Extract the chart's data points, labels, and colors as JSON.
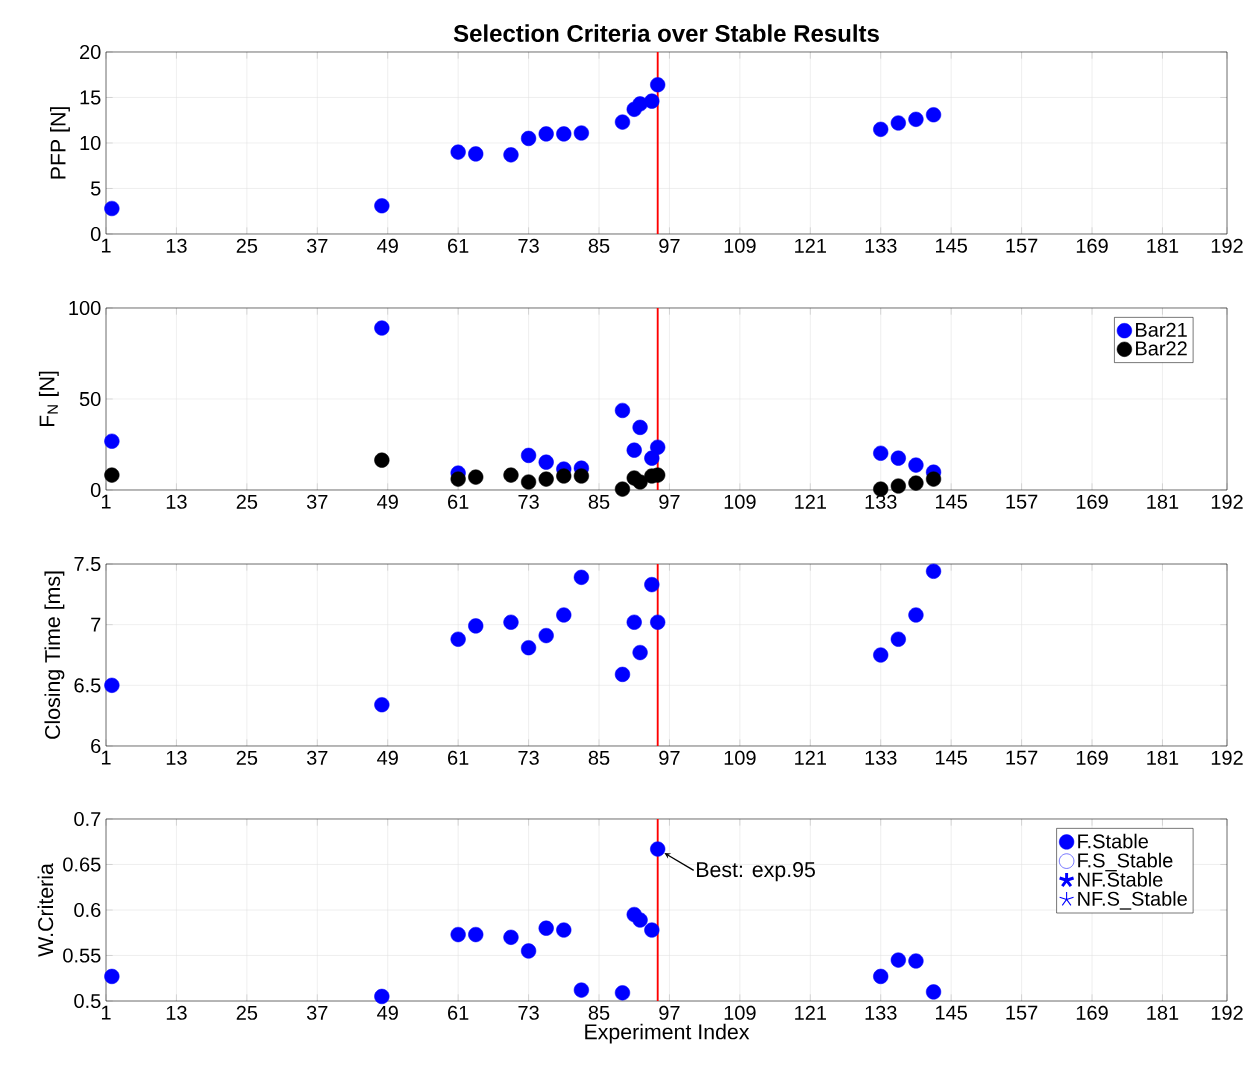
{
  "chart_data": [
    {
      "type": "scatter",
      "title": "Selection Criteria over Stable Results",
      "ylabel": "PFP [N]",
      "marker": "circle",
      "grid": true,
      "x": [
        2,
        48,
        61,
        64,
        70,
        73,
        76,
        79,
        82,
        89,
        91,
        92,
        94,
        95,
        133,
        136,
        139,
        142
      ],
      "values": [
        2.8,
        3.1,
        9.0,
        8.8,
        8.7,
        10.5,
        11.0,
        11.0,
        11.1,
        12.3,
        13.7,
        14.3,
        14.6,
        16.4,
        11.5,
        12.2,
        12.6,
        13.1
      ],
      "color": "#0000ff",
      "xlim": [
        1,
        192
      ],
      "xticks": [
        1,
        13,
        25,
        37,
        49,
        61,
        73,
        85,
        97,
        109,
        121,
        133,
        145,
        157,
        169,
        181,
        192
      ],
      "ylim": [
        0,
        20
      ],
      "yticks": [
        0,
        5,
        10,
        15,
        20
      ],
      "ref_lines": [
        {
          "axis": "x",
          "value": 95,
          "color": "#ff0000"
        }
      ]
    },
    {
      "type": "scatter",
      "ylabel": "F$_{N}$ [N]",
      "marker": "circle",
      "grid": true,
      "legend": "top right",
      "x": [
        2,
        48,
        61,
        64,
        70,
        73,
        76,
        79,
        82,
        89,
        91,
        92,
        94,
        95,
        133,
        136,
        139,
        142
      ],
      "series": [
        {
          "name": "Bar21",
          "color": "#0000ff",
          "values": [
            26.8,
            89,
            9.3,
            null,
            null,
            19,
            15.3,
            11.5,
            12,
            43.7,
            21.9,
            34.4,
            17.5,
            23.5,
            20.2,
            17.5,
            13.7,
            9.8
          ]
        },
        {
          "name": "Bar22",
          "color": "#000000",
          "values": [
            8.2,
            16.4,
            6,
            7.1,
            8.2,
            4.4,
            6,
            7.7,
            7.7,
            0.5,
            6.6,
            4.4,
            7.7,
            8.2,
            0.5,
            2.2,
            3.8,
            6
          ]
        }
      ],
      "xlim": [
        1,
        192
      ],
      "xticks": [
        1,
        13,
        25,
        37,
        49,
        61,
        73,
        85,
        97,
        109,
        121,
        133,
        145,
        157,
        169,
        181,
        192
      ],
      "ylim": [
        0,
        100
      ],
      "yticks": [
        0,
        50,
        100
      ],
      "ref_lines": [
        {
          "axis": "x",
          "value": 95,
          "color": "#ff0000"
        }
      ]
    },
    {
      "type": "scatter",
      "ylabel": "Closing Time [ms]",
      "marker": "circle",
      "grid": true,
      "x": [
        2,
        48,
        61,
        64,
        70,
        73,
        76,
        79,
        82,
        89,
        91,
        92,
        94,
        95,
        133,
        136,
        139,
        142
      ],
      "values": [
        6.5,
        6.34,
        6.88,
        6.99,
        7.02,
        6.81,
        6.91,
        7.08,
        7.39,
        6.59,
        7.02,
        6.77,
        7.33,
        7.02,
        6.75,
        6.88,
        7.08,
        7.44
      ],
      "color": "#0000ff",
      "xlim": [
        1,
        192
      ],
      "xticks": [
        1,
        13,
        25,
        37,
        49,
        61,
        73,
        85,
        97,
        109,
        121,
        133,
        145,
        157,
        169,
        181,
        192
      ],
      "ylim": [
        6,
        7.5
      ],
      "yticks": [
        6,
        6.5,
        7,
        7.5
      ],
      "ref_lines": [
        {
          "axis": "x",
          "value": 95,
          "color": "#ff0000"
        }
      ]
    },
    {
      "type": "scatter",
      "ylabel": "W.Criteria",
      "xlabel": "Experiment Index",
      "grid": true,
      "legend": "top right",
      "x": [
        2,
        48,
        61,
        64,
        70,
        73,
        76,
        79,
        82,
        89,
        91,
        92,
        94,
        95,
        133,
        136,
        139,
        142
      ],
      "series": [
        {
          "name": "F.Stable",
          "color": "#0000ff",
          "marker": "circle",
          "values": [
            0.527,
            0.505,
            0.573,
            0.573,
            0.57,
            0.555,
            0.58,
            0.578,
            0.512,
            0.509,
            0.595,
            0.589,
            0.578,
            0.667,
            0.527,
            0.545,
            0.544,
            0.51
          ]
        },
        {
          "name": "F.S_Stable",
          "color": "#0000ff",
          "marker": "circle-open",
          "values": [
            null,
            null,
            null,
            null,
            null,
            null,
            null,
            null,
            null,
            null,
            null,
            null,
            null,
            null,
            null,
            null,
            null,
            null
          ]
        },
        {
          "name": "NF.Stable",
          "color": "#0000ff",
          "marker": "star",
          "values": [
            null,
            null,
            null,
            null,
            null,
            null,
            null,
            null,
            null,
            null,
            null,
            null,
            null,
            null,
            null,
            null,
            null,
            null
          ]
        },
        {
          "name": "NF.S_Stable",
          "color": "#0000ff",
          "marker": "star-open",
          "values": [
            null,
            null,
            null,
            null,
            null,
            null,
            null,
            null,
            null,
            null,
            null,
            null,
            null,
            null,
            null,
            null,
            null,
            null
          ]
        }
      ],
      "xlim": [
        1,
        192
      ],
      "xticks": [
        1,
        13,
        25,
        37,
        49,
        61,
        73,
        85,
        97,
        109,
        121,
        133,
        145,
        157,
        169,
        181,
        192
      ],
      "ylim": [
        0.5,
        0.7
      ],
      "yticks": [
        0.5,
        0.55,
        0.6,
        0.65,
        0.7
      ],
      "ref_lines": [
        {
          "axis": "x",
          "value": 95,
          "color": "#ff0000"
        }
      ],
      "annotations": [
        {
          "text": "Best: exp.95",
          "x": 95,
          "y": 0.667
        }
      ]
    }
  ]
}
